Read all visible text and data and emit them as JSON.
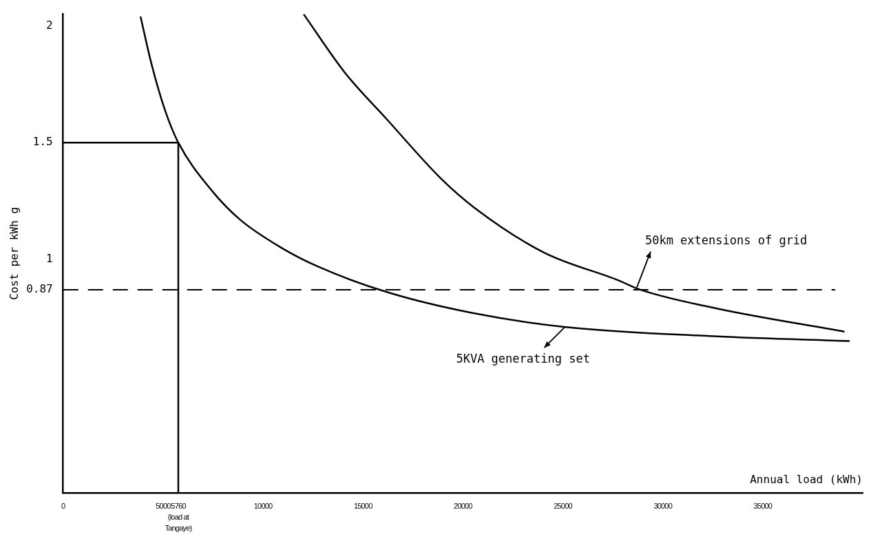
{
  "chart_data": {
    "type": "line",
    "xlabel": "Annual load (kWh)",
    "ylabel": "Cost per kWh g",
    "xlim": [
      0,
      40000
    ],
    "ylim": [
      0,
      2.05
    ],
    "xticks": [
      0,
      5000,
      {
        "value": 5760,
        "label": "5760\n(load at\nTangaye)"
      },
      10000,
      15000,
      20000,
      25000,
      30000,
      35000
    ],
    "yticks": [
      0.87,
      1,
      1.5,
      2
    ],
    "grid": false,
    "legend": false,
    "marker": "none",
    "series": [
      {
        "color": "#000000",
        "x": [
          3870,
          4410,
          5090,
          5760,
          7480,
          8850,
          10910,
          12720,
          16190,
          20490,
          25150,
          32730,
          39350
        ],
        "values": [
          2.04,
          1.84,
          1.64,
          1.5,
          1.29,
          1.17,
          1.05,
          0.97,
          0.86,
          0.77,
          0.71,
          0.67,
          0.65
        ]
      },
      {
        "color": "#000000",
        "x": [
          12030,
          14090,
          16190,
          18970,
          20590,
          24030,
          27780,
          28870,
          32660,
          39090
        ],
        "values": [
          2.05,
          1.8,
          1.6,
          1.34,
          1.22,
          1.03,
          0.91,
          0.87,
          0.79,
          0.69
        ]
      },
      {
        "color": "#000000",
        "x": [
          0,
          5760,
          5760
        ],
        "values": [
          1.5,
          1.5,
          0
        ]
      }
    ],
    "ref_lines": [
      {
        "axis": "y",
        "value": 0.87,
        "line_style": "dashed",
        "color": "#000000"
      }
    ],
    "annotations": [
      {
        "text": "50km extensions of grid",
        "x": 28700,
        "y": 0.88
      },
      {
        "text": "5KVA generating set",
        "x": 25100,
        "y": 0.71
      }
    ]
  }
}
